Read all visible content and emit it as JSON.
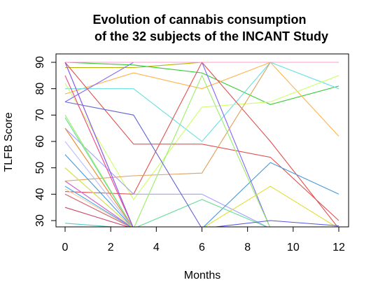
{
  "chart_data": {
    "type": "line",
    "title_line1": "Evolution of cannabis consumption",
    "title_line2": "of the 32 subjects of the INCANT Study",
    "xlabel": "Months",
    "ylabel": "TLFB Score",
    "x": [
      0,
      3,
      6,
      9,
      12
    ],
    "xlim": [
      0,
      12
    ],
    "ylim": [
      28,
      90
    ],
    "x_ticks": [
      "0",
      "2",
      "4",
      "6",
      "8",
      "10",
      "12"
    ],
    "y_ticks": [
      "30",
      "40",
      "50",
      "60",
      "70",
      "80",
      "90"
    ],
    "legend": "none",
    "grid": false,
    "series": [
      {
        "color": "#b3b300",
        "values": [
          88,
          88,
          90,
          90,
          90
        ]
      },
      {
        "color": "#33cc33",
        "values": [
          90,
          89,
          86,
          74,
          81
        ]
      },
      {
        "color": "#ffb347",
        "values": [
          78,
          86,
          80,
          90,
          62
        ]
      },
      {
        "color": "#66e0e0",
        "values": [
          80,
          80,
          60,
          90,
          80
        ]
      },
      {
        "color": "#ccff66",
        "values": [
          82,
          38,
          73,
          75,
          85
        ]
      },
      {
        "color": "#7f66ff",
        "values": [
          75,
          90,
          90,
          27,
          27
        ]
      },
      {
        "color": "#e05050",
        "values": [
          90,
          59,
          59,
          54,
          30
        ]
      },
      {
        "color": "#e05050",
        "values": [
          41,
          40,
          90,
          60,
          27
        ]
      },
      {
        "color": "#e0a060",
        "values": [
          45,
          47,
          48,
          90,
          90
        ]
      },
      {
        "color": "#ff99cc",
        "values": [
          90,
          90,
          90,
          90,
          90
        ]
      },
      {
        "color": "#a0a0ff",
        "values": [
          65,
          40,
          40,
          27,
          27
        ]
      },
      {
        "color": "#4499dd",
        "values": [
          55,
          27,
          27,
          52,
          40
        ]
      },
      {
        "color": "#99ee66",
        "values": [
          70,
          27,
          85,
          27,
          27
        ]
      },
      {
        "color": "#e0e033",
        "values": [
          65,
          27,
          27,
          43,
          27
        ]
      },
      {
        "color": "#66dd99",
        "values": [
          69,
          27,
          38,
          27,
          27
        ]
      },
      {
        "color": "#5555dd",
        "values": [
          45,
          27,
          27,
          30,
          28
        ]
      },
      {
        "color": "#cc4466",
        "values": [
          35,
          27,
          27,
          27,
          27
        ]
      },
      {
        "color": "#cc3399",
        "values": [
          90,
          27,
          27,
          27,
          27
        ]
      },
      {
        "color": "#aa66cc",
        "values": [
          50,
          27,
          27,
          27,
          27
        ]
      },
      {
        "color": "#99ccff",
        "values": [
          40,
          27,
          27,
          27,
          27
        ]
      },
      {
        "color": "#ffcc99",
        "values": [
          42,
          27,
          27,
          27,
          27
        ]
      },
      {
        "color": "#dd6666",
        "values": [
          40,
          27,
          27,
          27,
          27
        ]
      },
      {
        "color": "#55cccc",
        "values": [
          29,
          27,
          27,
          27,
          27
        ]
      },
      {
        "color": "#88ee88",
        "values": [
          45,
          27,
          27,
          27,
          27
        ]
      },
      {
        "color": "#6666cc",
        "values": [
          75,
          70,
          27,
          27,
          27
        ]
      },
      {
        "color": "#ee8844",
        "values": [
          65,
          27,
          27,
          27,
          27
        ]
      },
      {
        "color": "#dd66dd",
        "values": [
          45,
          27,
          27,
          27,
          27
        ]
      },
      {
        "color": "#bbbbff",
        "values": [
          60,
          27,
          27,
          27,
          27
        ]
      },
      {
        "color": "#ddee44",
        "values": [
          50,
          27,
          27,
          27,
          27
        ]
      },
      {
        "color": "#44aaee",
        "values": [
          43,
          27,
          27,
          27,
          27
        ]
      },
      {
        "color": "#ee4488",
        "values": [
          85,
          27,
          27,
          27,
          27
        ]
      },
      {
        "color": "#8866ee",
        "values": [
          90,
          27,
          27,
          27,
          27
        ]
      }
    ]
  }
}
